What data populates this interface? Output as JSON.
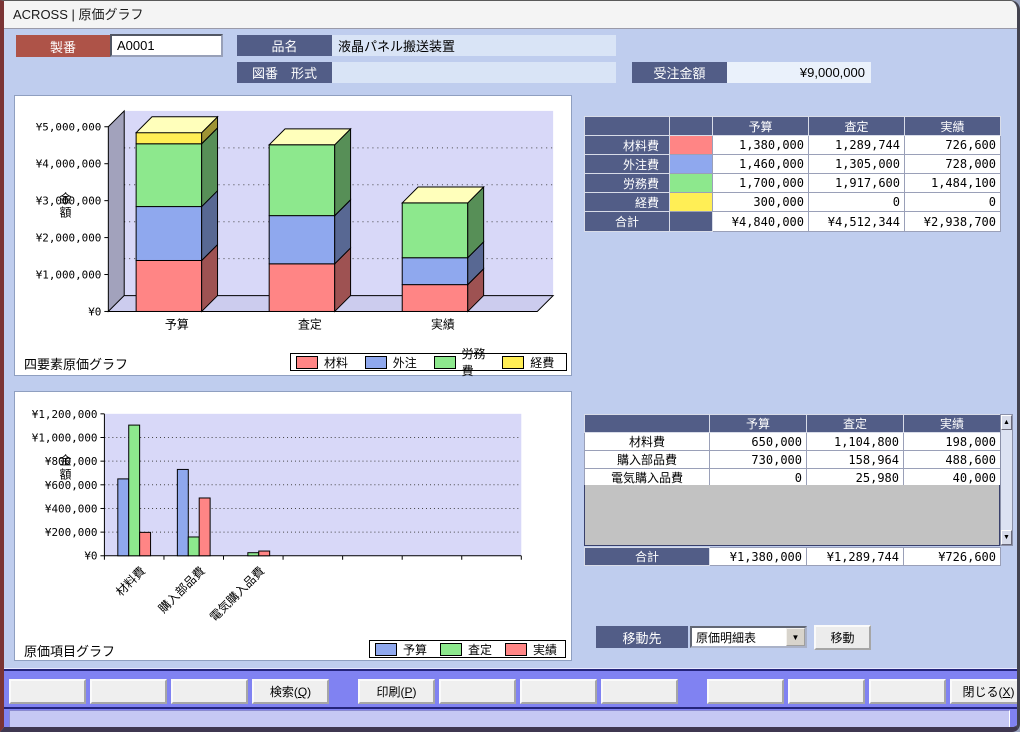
{
  "window": {
    "title": "ACROSS | 原価グラフ"
  },
  "form": {
    "seiban_label": "製番",
    "seiban_value": "A0001",
    "hinmei_label": "品名",
    "hinmei_value": "液晶パネル搬送装置",
    "zuban_label": "図番　形式",
    "zuban_value": "",
    "order_amount_label": "受注金額",
    "order_amount_value": "¥9,000,000"
  },
  "chart_data": [
    {
      "type": "bar",
      "subtype": "stacked-3d",
      "title": "四要素原価グラフ",
      "ylabel": "金額",
      "categories": [
        "予算",
        "査定",
        "実績"
      ],
      "series": [
        {
          "name": "材料",
          "color": "#ff8585",
          "values": [
            1380000,
            1289744,
            726600
          ]
        },
        {
          "name": "外注",
          "color": "#8fa8ee",
          "values": [
            1460000,
            1305000,
            728000
          ]
        },
        {
          "name": "労務費",
          "color": "#8de88d",
          "values": [
            1700000,
            1917600,
            1484100
          ]
        },
        {
          "name": "経費",
          "color": "#ffee55",
          "values": [
            300000,
            0,
            0
          ]
        }
      ],
      "ylim": [
        0,
        5000000
      ],
      "ytick_step": 1000000,
      "ytick_labels": [
        "¥0",
        "¥1,000,000",
        "¥2,000,000",
        "¥3,000,000",
        "¥4,000,000",
        "¥5,000,000"
      ],
      "grid": true,
      "legend_position": "bottom-right"
    },
    {
      "type": "bar",
      "subtype": "grouped",
      "title": "原価項目グラフ",
      "ylabel": "金額",
      "categories": [
        "材料費",
        "購入部品費",
        "電気購入品費"
      ],
      "series": [
        {
          "name": "予算",
          "color": "#8fa8ee",
          "values": [
            650000,
            730000,
            0
          ]
        },
        {
          "name": "査定",
          "color": "#8de88d",
          "values": [
            1104800,
            158964,
            25980
          ]
        },
        {
          "name": "実績",
          "color": "#ff8585",
          "values": [
            198000,
            488600,
            40000
          ]
        }
      ],
      "ylim": [
        0,
        1200000
      ],
      "ytick_step": 200000,
      "ytick_labels": [
        "¥0",
        "¥200,000",
        "¥400,000",
        "¥600,000",
        "¥800,000",
        "¥1,000,000",
        "¥1,200,000"
      ],
      "grid": true,
      "legend_position": "bottom-right"
    }
  ],
  "tables": {
    "summary": {
      "headers": [
        "予算",
        "査定",
        "実績"
      ],
      "rows": [
        {
          "label": "材料費",
          "swatch": "#ff8585",
          "values": [
            "1,380,000",
            "1,289,744",
            "726,600"
          ]
        },
        {
          "label": "外注費",
          "swatch": "#8fa8ee",
          "values": [
            "1,460,000",
            "1,305,000",
            "728,000"
          ]
        },
        {
          "label": "労務費",
          "swatch": "#8de88d",
          "values": [
            "1,700,000",
            "1,917,600",
            "1,484,100"
          ]
        },
        {
          "label": "経費",
          "swatch": "#ffee55",
          "values": [
            "300,000",
            "0",
            "0"
          ]
        }
      ],
      "total": {
        "label": "合計",
        "values": [
          "¥4,840,000",
          "¥4,512,344",
          "¥2,938,700"
        ]
      }
    },
    "detail": {
      "headers": [
        "予算",
        "査定",
        "実績"
      ],
      "rows": [
        {
          "label": "材料費",
          "values": [
            "650,000",
            "1,104,800",
            "198,000"
          ]
        },
        {
          "label": "購入部品費",
          "values": [
            "730,000",
            "158,964",
            "488,600"
          ]
        },
        {
          "label": "電気購入品費",
          "values": [
            "0",
            "25,980",
            "40,000"
          ]
        }
      ],
      "total": {
        "label": "合計",
        "values": [
          "¥1,380,000",
          "¥1,289,744",
          "¥726,600"
        ]
      }
    }
  },
  "mover": {
    "label": "移動先",
    "selected_option": "原価明細表",
    "button_label": "移動"
  },
  "toolbar": {
    "buttons": [
      {
        "label": "",
        "name": "toolbar-button-1"
      },
      {
        "label": "",
        "name": "toolbar-button-2"
      },
      {
        "label": "",
        "name": "toolbar-button-3"
      },
      {
        "label": "検索(Q)",
        "name": "search-button"
      },
      {
        "label": "印刷(P)",
        "name": "print-button",
        "gap": true
      },
      {
        "label": "",
        "name": "toolbar-button-6"
      },
      {
        "label": "",
        "name": "toolbar-button-7"
      },
      {
        "label": "",
        "name": "toolbar-button-8"
      },
      {
        "label": "",
        "name": "toolbar-button-9",
        "gap": true
      },
      {
        "label": "",
        "name": "toolbar-button-10"
      },
      {
        "label": "",
        "name": "toolbar-button-11"
      },
      {
        "label": "閉じる(X)",
        "name": "close-button"
      }
    ]
  },
  "status_bar": {
    "text": ""
  },
  "icons": {
    "dropdown_arrow": "▼",
    "scroll_up": "▲",
    "scroll_down": "▼"
  },
  "colors": {
    "body_bg": "#bfcdee",
    "label_dark": "#525d87",
    "seiban_label": "#ae5348",
    "toolbar_bg": "#8082f2",
    "plot_bg": "#d8d8f8",
    "bar_top_face": "#ffffbb"
  }
}
